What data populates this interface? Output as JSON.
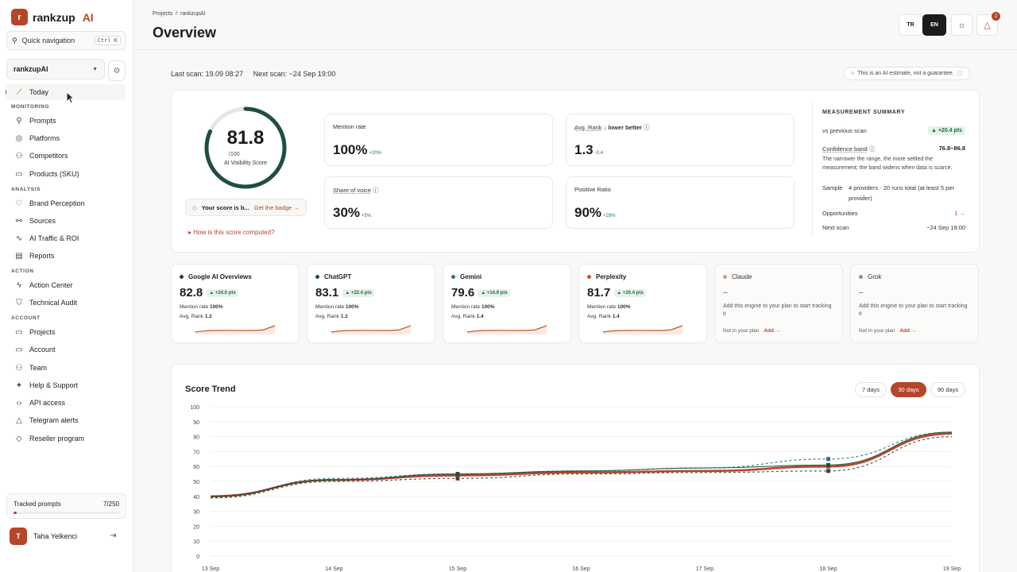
{
  "brand": {
    "logo_letter": "r",
    "name": "rankzup",
    "ai": "AI"
  },
  "quicknav": {
    "label": "Quick navigation",
    "shortcut": "Ctrl K"
  },
  "project": {
    "name": "rankzupAI"
  },
  "nav": {
    "today": "Today",
    "sections": {
      "monitoring": "MONITORING",
      "analysis": "ANALYSIS",
      "action": "ACTION",
      "account": "ACCOUNT"
    },
    "monitoring": [
      "Prompts",
      "Platforms",
      "Competitors",
      "Products (SKU)"
    ],
    "analysis": [
      "Brand Perception",
      "Sources",
      "AI Traffic & ROI",
      "Reports"
    ],
    "action": [
      "Action Center",
      "Technical Audit"
    ],
    "account": [
      "Projects",
      "Account",
      "Team",
      "Help & Support",
      "API access",
      "Telegram alerts",
      "Reseller program"
    ]
  },
  "tracked": {
    "label": "Tracked prompts",
    "value": "7/250",
    "fraction": 0.028
  },
  "user": {
    "initial": "T",
    "name": "Taha Yelkenci"
  },
  "header": {
    "breadcrumb": "Projects  /  rankzupAI",
    "title": "Overview",
    "lang_tr": "TR",
    "lang_en": "EN",
    "notifications": "2"
  },
  "scan": {
    "last": "Last scan: 19.09 08:27",
    "next": "Next scan: ~24 Sep 19:00",
    "disclaimer": "This is an AI estimate, not a guarantee."
  },
  "score": {
    "value": "81.8",
    "denominator": "/100",
    "label": "AI Visibility Score",
    "fraction": 0.818,
    "pill_text": "Your score is b...",
    "pill_link": "Get the badge →",
    "how": "How is this score computed?"
  },
  "metrics": {
    "mention": {
      "label": "Mention rate",
      "value": "100%",
      "delta": "+20%"
    },
    "rank": {
      "label": "Avg. Rank",
      "hint": "↓ lower better",
      "value": "1.3",
      "delta": "-0.4"
    },
    "sov": {
      "label": "Share of voice",
      "value": "30%",
      "delta": "+5%"
    },
    "positive": {
      "label": "Positive Ratio",
      "value": "90%",
      "delta": "+28%"
    }
  },
  "summary": {
    "title": "MEASUREMENT SUMMARY",
    "vs_prev_label": "vs previous scan",
    "vs_prev_value": "▲ +20.4 pts",
    "band_label": "Confidence band",
    "band_value": "76.8–86.8",
    "band_note": "The narrower the range, the more settled the measurement; the band widens when data is scarce.",
    "sample_label": "Sample",
    "sample_value": "4 providers · 20 runs total (at least 5 per provider)",
    "opp_label": "Opportunities",
    "opp_value": "1 →",
    "next_label": "Next scan",
    "next_value": "~24 Sep 19:00"
  },
  "engines": [
    {
      "name": "Google AI Overviews",
      "color": "#3a3a3a",
      "score": "82.8",
      "delta": "▲ +24.0 pts",
      "mention": "100%",
      "rank": "1.2"
    },
    {
      "name": "ChatGPT",
      "color": "#1f4f3a",
      "score": "83.1",
      "delta": "▲ +22.4 pts",
      "mention": "100%",
      "rank": "1.2"
    },
    {
      "name": "Gemini",
      "color": "#2c6e8a",
      "score": "79.6",
      "delta": "▲ +14.9 pts",
      "mention": "100%",
      "rank": "1.4"
    },
    {
      "name": "Perplexity",
      "color": "#c0582c",
      "score": "81.7",
      "delta": "▲ +20.4 pts",
      "mention": "100%",
      "rank": "1.4"
    }
  ],
  "engine_labels": {
    "mention": "Mention rate",
    "rank": "Avg. Rank"
  },
  "engines_disabled": [
    {
      "name": "Claude",
      "color": "#c9a07a",
      "dash": "–",
      "msg": "Add this engine to your plan to start tracking it",
      "plan": "Not in your plan · ",
      "add": "Add →"
    },
    {
      "name": "Grok",
      "color": "#8a8fa8",
      "dash": "–",
      "msg": "Add this engine to your plan to start tracking it",
      "plan": "Not in your plan · ",
      "add": "Add →"
    }
  ],
  "trend": {
    "title": "Score Trend",
    "ranges": [
      "7 days",
      "30 days",
      "90 days"
    ],
    "selected": "30 days"
  },
  "chart_data": {
    "type": "line",
    "title": "Score Trend",
    "x": [
      "13 Sep",
      "14 Sep",
      "15 Sep",
      "16 Sep",
      "17 Sep",
      "18 Sep",
      "19 Sep"
    ],
    "ylim": [
      0,
      100
    ],
    "yticks": [
      0,
      10,
      20,
      30,
      40,
      50,
      60,
      70,
      80,
      90,
      100
    ],
    "grid": true,
    "series": [
      {
        "color": "#b5462a",
        "style": "solid",
        "values": [
          40,
          51,
          54,
          56,
          57,
          60,
          82
        ]
      },
      {
        "color": "#2c6e8a",
        "style": "dashed",
        "values": [
          39,
          52,
          55,
          57,
          59,
          65,
          83
        ]
      },
      {
        "color": "#1f4f3a",
        "style": "solid",
        "values": [
          40,
          51,
          55,
          57,
          59,
          61,
          83
        ]
      },
      {
        "color": "#444444",
        "style": "dashed",
        "values": [
          39,
          50,
          52,
          55,
          56,
          57,
          80
        ]
      }
    ]
  }
}
